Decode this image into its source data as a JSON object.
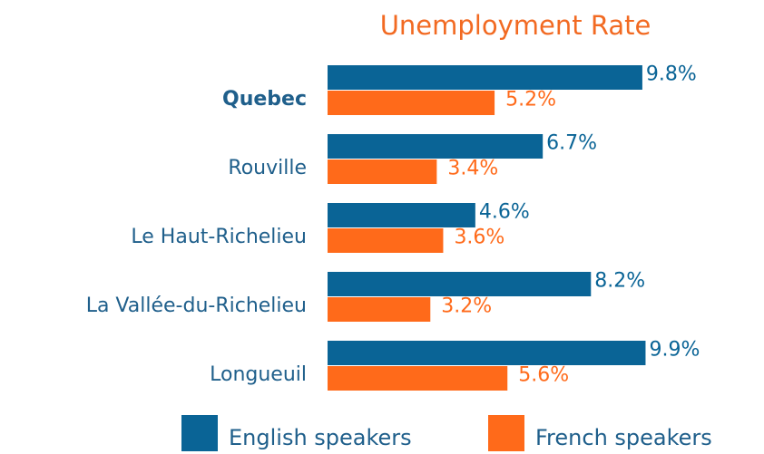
{
  "chart_data": {
    "type": "hbar",
    "title": "Unemployment Rate",
    "categories": [
      "Quebec",
      "Rouville",
      "Le Haut-Richelieu",
      "La Vallée-du-Richelieu",
      "Longueuil"
    ],
    "highlight": 0,
    "series": [
      {
        "name": "English speakers",
        "color": "#0a6496",
        "values": [
          9.8,
          6.7,
          4.6,
          8.2,
          9.9
        ],
        "value_labels": [
          "9.8%",
          "6.7%",
          "4.6%",
          "8.2%",
          "9.9%"
        ]
      },
      {
        "name": "French speakers",
        "color": "#ff6a1a",
        "values": [
          5.2,
          3.4,
          3.6,
          3.2,
          5.6
        ],
        "value_labels": [
          "5.2%",
          "3.4%",
          "3.6%",
          "3.2%",
          "5.6%"
        ]
      }
    ],
    "xlim": [
      0,
      10
    ]
  }
}
